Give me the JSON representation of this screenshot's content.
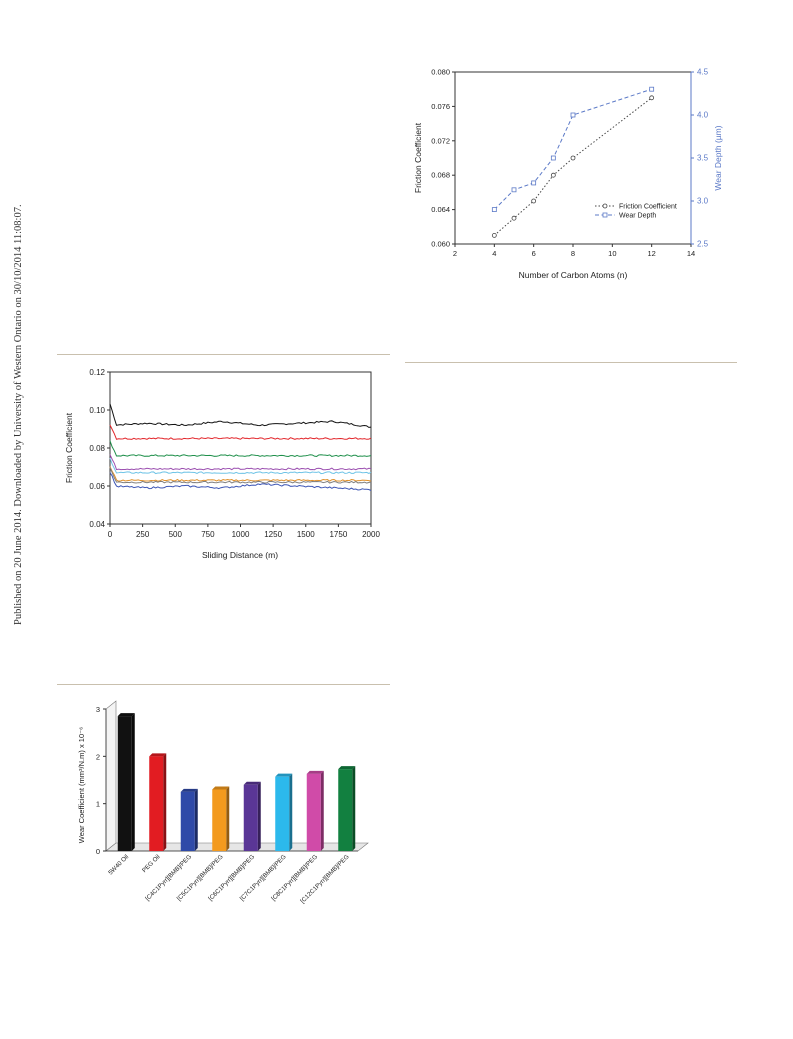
{
  "watermark": "Published on 20 June 2014. Downloaded by University of Western Ontario on 30/10/2014 11:08:07.",
  "chart_data": [
    {
      "type": "line",
      "xlabel": "Number of Carbon Atoms (n)",
      "ylabel": "Friction Coefficient",
      "y2label": "Wear Depth (µm)",
      "xlim": [
        2,
        14
      ],
      "ylim": [
        0.06,
        0.08
      ],
      "y2lim": [
        2.5,
        4.5
      ],
      "xticks": [
        "2",
        "4",
        "6",
        "8",
        "10",
        "12",
        "14"
      ],
      "yticks": [
        "0.060",
        "0.064",
        "0.068",
        "0.072",
        "0.076",
        "0.080"
      ],
      "y2ticks": [
        "2.5",
        "3.0",
        "3.5",
        "4.0",
        "4.5"
      ],
      "legend_position": "bottom-right",
      "series": [
        {
          "name": "Friction Coefficient",
          "axis": "left",
          "marker": "circle",
          "style": "dotted",
          "color": "#444444",
          "x": [
            4,
            5,
            6,
            7,
            8,
            12
          ],
          "values": [
            0.061,
            0.063,
            0.065,
            0.068,
            0.07,
            0.077
          ]
        },
        {
          "name": "Wear Depth",
          "axis": "right",
          "marker": "square",
          "style": "dashed",
          "color": "#5b79c7",
          "x": [
            4,
            5,
            6,
            7,
            8,
            12
          ],
          "values": [
            2.9,
            3.13,
            3.21,
            3.5,
            4.0,
            4.3
          ]
        }
      ]
    },
    {
      "type": "line",
      "xlabel": "Sliding Distance (m)",
      "ylabel": "Friction Coefficient",
      "xlim": [
        0,
        2000
      ],
      "ylim": [
        0.04,
        0.12
      ],
      "xticks": [
        "0",
        "250",
        "500",
        "750",
        "1000",
        "1250",
        "1500",
        "1750",
        "2000"
      ],
      "yticks": [
        "0.04",
        "0.06",
        "0.08",
        "0.10",
        "0.12"
      ],
      "series": [
        {
          "color": "#111111",
          "values": [
            0.092,
            0.093,
            0.092,
            0.094,
            0.092,
            0.093,
            0.094,
            0.091
          ]
        },
        {
          "color": "#e2262b",
          "values": [
            0.085
          ]
        },
        {
          "color": "#1e8f4a",
          "values": [
            0.076
          ]
        },
        {
          "color": "#9b4fb0",
          "values": [
            0.069
          ]
        },
        {
          "color": "#6ec3e6",
          "values": [
            0.067
          ]
        },
        {
          "color": "#e0902a",
          "values": [
            0.063
          ]
        },
        {
          "color": "#7f7f7f",
          "values": [
            0.062
          ]
        },
        {
          "color": "#3d56b5",
          "values": [
            0.06,
            0.059,
            0.06,
            0.059,
            0.061,
            0.06,
            0.059,
            0.058
          ]
        }
      ]
    },
    {
      "type": "bar",
      "ylabel": "Wear Coefficient (mm³/N.m) x 10⁻⁶",
      "ylim": [
        0,
        3
      ],
      "yticks": [
        "0",
        "1",
        "2",
        "3"
      ],
      "categories": [
        "5W40 Oil",
        "PEG Oil",
        "[C4C1Pyrr][BMB]/PEG",
        "[C5C1Pyrr][BMB]/PEG",
        "[C6C1Pyrr][BMB]/PEG",
        "[C7C1Pyrr][BMB]/PEG",
        "[C8C1Pyrr][BMB]/PEG",
        "[C12C1Pyrr][BMB]/PEG"
      ],
      "values": [
        2.85,
        2.0,
        1.25,
        1.3,
        1.4,
        1.57,
        1.63,
        1.73
      ],
      "colors": [
        "#111111",
        "#e21c22",
        "#2f4aa8",
        "#f39a1e",
        "#5a3696",
        "#2cb9ec",
        "#d04ba8",
        "#128040"
      ]
    }
  ]
}
